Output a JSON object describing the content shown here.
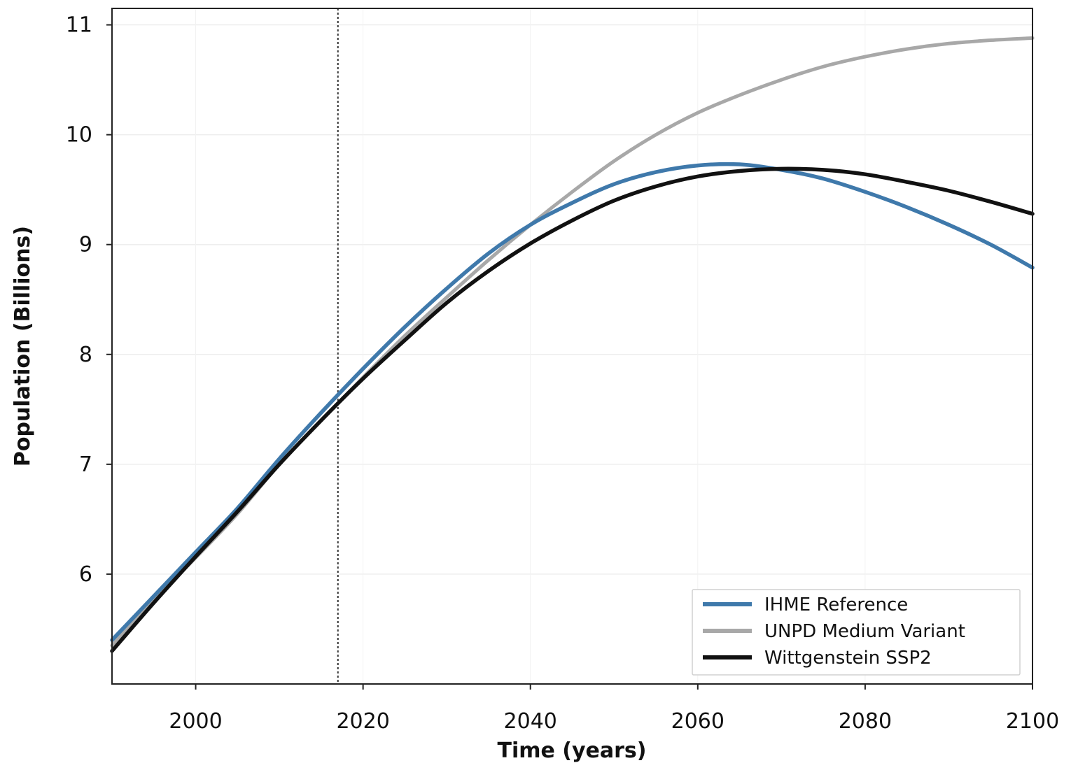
{
  "chart_data": {
    "type": "line",
    "title": "",
    "xlabel": "Time (years)",
    "ylabel": "Population (Billions)",
    "xlim": [
      1990,
      2100
    ],
    "ylim": [
      5.0,
      11.15
    ],
    "xticks": [
      2000,
      2020,
      2040,
      2060,
      2080,
      2100
    ],
    "yticks": [
      6,
      7,
      8,
      9,
      10,
      11
    ],
    "xtick_labels": [
      "2000",
      "2020",
      "2040",
      "2060",
      "2080",
      "2100"
    ],
    "ytick_labels": [
      "6",
      "7",
      "8",
      "9",
      "10",
      "11"
    ],
    "grid": true,
    "reference_line": {
      "x": 2017,
      "style": "dotted"
    },
    "legend": {
      "location": "lower-right"
    },
    "series": [
      {
        "name": "IHME Reference",
        "color": "#3f79ab",
        "x": [
          1990,
          1995,
          2000,
          2005,
          2010,
          2015,
          2020,
          2025,
          2030,
          2035,
          2040,
          2045,
          2050,
          2055,
          2060,
          2065,
          2070,
          2075,
          2080,
          2085,
          2090,
          2095,
          2100
        ],
        "y": [
          5.4,
          5.8,
          6.2,
          6.6,
          7.05,
          7.47,
          7.87,
          8.25,
          8.6,
          8.92,
          9.18,
          9.38,
          9.55,
          9.66,
          9.72,
          9.73,
          9.68,
          9.6,
          9.48,
          9.34,
          9.18,
          9.0,
          8.79
        ]
      },
      {
        "name": "UNPD Medium Variant",
        "color": "#a8a8a8",
        "x": [
          1990,
          1995,
          2000,
          2005,
          2010,
          2015,
          2020,
          2025,
          2030,
          2035,
          2040,
          2045,
          2050,
          2055,
          2060,
          2065,
          2070,
          2075,
          2080,
          2085,
          2090,
          2095,
          2100
        ],
        "y": [
          5.35,
          5.77,
          6.15,
          6.55,
          7.0,
          7.4,
          7.79,
          8.17,
          8.52,
          8.86,
          9.18,
          9.48,
          9.76,
          10.0,
          10.2,
          10.36,
          10.5,
          10.62,
          10.71,
          10.78,
          10.83,
          10.86,
          10.88
        ]
      },
      {
        "name": "Wittgenstein SSP2",
        "color": "#111111",
        "x": [
          1990,
          1995,
          2000,
          2005,
          2010,
          2015,
          2020,
          2025,
          2030,
          2035,
          2040,
          2045,
          2050,
          2055,
          2060,
          2065,
          2070,
          2075,
          2080,
          2085,
          2090,
          2095,
          2100
        ],
        "y": [
          5.3,
          5.74,
          6.16,
          6.57,
          7.0,
          7.4,
          7.78,
          8.13,
          8.47,
          8.76,
          9.01,
          9.22,
          9.4,
          9.53,
          9.62,
          9.67,
          9.69,
          9.68,
          9.64,
          9.57,
          9.49,
          9.39,
          9.28
        ]
      }
    ]
  }
}
